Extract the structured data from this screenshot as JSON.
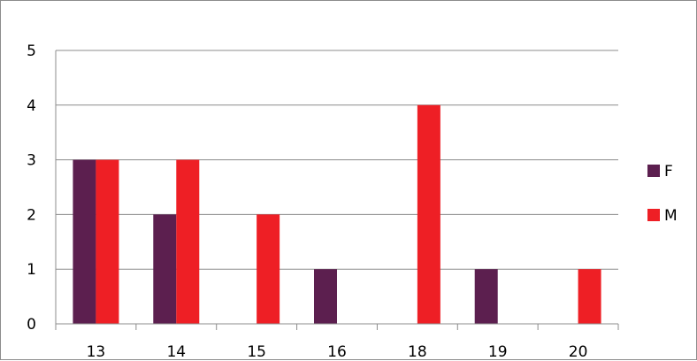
{
  "chart_data": {
    "type": "bar",
    "categories": [
      "13",
      "14",
      "15",
      "16",
      "18",
      "19",
      "20"
    ],
    "series": [
      {
        "name": "F",
        "values": [
          3,
          2,
          0,
          1,
          0,
          1,
          0
        ],
        "color": "#5c1f4f"
      },
      {
        "name": "M",
        "values": [
          3,
          3,
          2,
          0,
          4,
          0,
          1
        ],
        "color": "#ee1f25"
      }
    ],
    "y_ticks": [
      "0",
      "1",
      "2",
      "3",
      "4",
      "5"
    ],
    "ylim": [
      0,
      5
    ],
    "grid": true,
    "legend_position": "right"
  }
}
